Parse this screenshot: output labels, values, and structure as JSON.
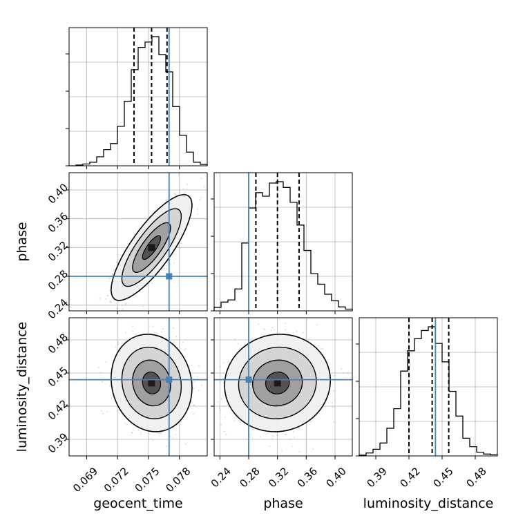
{
  "chart_data": {
    "type": "corner",
    "parameters": [
      {
        "key": "geocent_time",
        "label": "geocent_time",
        "range": [
          0.0673,
          0.0807
        ],
        "ticks": [
          "0.069",
          "0.072",
          "0.075",
          "0.078"
        ],
        "tick_values": [
          0.069,
          0.072,
          0.075,
          0.078
        ],
        "truth": 0.077,
        "quantiles": [
          0.0736,
          0.0753,
          0.0768
        ],
        "histogram": {
          "edges_start": 0.0673,
          "bin_width": 0.00067,
          "counts": [
            0,
            2,
            5,
            10,
            25,
            45,
            62,
            110,
            180,
            268,
            330,
            345,
            360,
            310,
            262,
            165,
            85,
            38,
            10,
            4
          ]
        }
      },
      {
        "key": "phase",
        "label": "phase",
        "range": [
          0.232,
          0.424
        ],
        "ticks": [
          "0.24",
          "0.28",
          "0.32",
          "0.36",
          "0.40"
        ],
        "tick_values": [
          0.24,
          0.28,
          0.32,
          0.36,
          0.4
        ],
        "truth": 0.28,
        "quantiles": [
          0.29,
          0.32,
          0.35
        ],
        "histogram": {
          "edges_start": 0.232,
          "bin_width": 0.0096,
          "counts": [
            8,
            20,
            25,
            50,
            155,
            235,
            270,
            262,
            292,
            295,
            282,
            248,
            196,
            138,
            85,
            61,
            38,
            23,
            9,
            4
          ]
        }
      },
      {
        "key": "luminosity_distance",
        "label": "luminosity_distance",
        "range": [
          0.375,
          0.5
        ],
        "ticks": [
          "0.39",
          "0.42",
          "0.45",
          "0.48"
        ],
        "tick_values": [
          0.39,
          0.42,
          0.45,
          0.48
        ],
        "truth": 0.444,
        "quantiles": [
          0.42,
          0.441,
          0.456
        ],
        "histogram": {
          "edges_start": 0.375,
          "bin_width": 0.00625,
          "counts": [
            2,
            8,
            18,
            35,
            75,
            128,
            230,
            285,
            318,
            340,
            350,
            305,
            255,
            175,
            108,
            48,
            25,
            10,
            5,
            3
          ]
        }
      }
    ],
    "pairs": [
      {
        "x": "geocent_time",
        "y": "phase",
        "correlation": 0.8
      },
      {
        "x": "geocent_time",
        "y": "luminosity_distance",
        "correlation": -0.1
      },
      {
        "x": "phase",
        "y": "luminosity_distance",
        "correlation": 0.05
      }
    ],
    "colors": {
      "line": "#000000",
      "truth": "#4682b4",
      "grid": "#b0b0b0",
      "points": "#7f7f7f"
    }
  }
}
